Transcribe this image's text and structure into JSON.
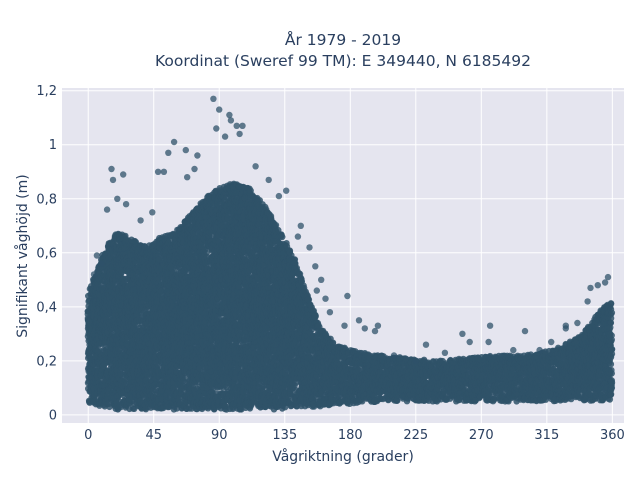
{
  "chart_data": {
    "type": "scatter",
    "title": "År 1979 - 2019",
    "subtitle": "Koordinat (Sweref 99 TM): E 349440, N 6185492",
    "xlabel": "Vågriktning (grader)",
    "ylabel": "Signifikant våghöjd (m)",
    "xlim": [
      -18,
      368
    ],
    "ylim": [
      -0.03,
      1.21
    ],
    "xticks": [
      0,
      45,
      90,
      135,
      180,
      225,
      270,
      315,
      360
    ],
    "xtick_labels": [
      "0",
      "45",
      "90",
      "135",
      "180",
      "225",
      "270",
      "315",
      "360"
    ],
    "yticks": [
      0,
      0.2,
      0.4,
      0.6,
      0.8,
      1,
      1.2
    ],
    "ytick_labels": [
      "0",
      "0,2",
      "0,4",
      "0,6",
      "0,8",
      "1",
      "1,2"
    ],
    "grid": true,
    "background": "#e5e5ef",
    "marker_color": "#2f5269",
    "envelope": {
      "direction": [
        0,
        10,
        20,
        30,
        40,
        50,
        60,
        70,
        80,
        90,
        100,
        110,
        120,
        130,
        140,
        150,
        160,
        170,
        180,
        200,
        220,
        240,
        260,
        280,
        300,
        320,
        340,
        350,
        360
      ],
      "lower": [
        0.04,
        0.03,
        0.02,
        0.02,
        0.02,
        0.02,
        0.02,
        0.02,
        0.02,
        0.02,
        0.02,
        0.02,
        0.02,
        0.02,
        0.03,
        0.03,
        0.03,
        0.04,
        0.04,
        0.05,
        0.05,
        0.05,
        0.05,
        0.05,
        0.05,
        0.05,
        0.05,
        0.05,
        0.05
      ],
      "upper": [
        0.45,
        0.6,
        0.68,
        0.65,
        0.62,
        0.66,
        0.68,
        0.74,
        0.8,
        0.84,
        0.86,
        0.84,
        0.78,
        0.7,
        0.6,
        0.45,
        0.32,
        0.26,
        0.24,
        0.22,
        0.21,
        0.2,
        0.21,
        0.22,
        0.22,
        0.24,
        0.3,
        0.38,
        0.42
      ]
    },
    "outliers": [
      {
        "x": 86,
        "y": 1.17
      },
      {
        "x": 90,
        "y": 1.13
      },
      {
        "x": 97,
        "y": 1.11
      },
      {
        "x": 98,
        "y": 1.09
      },
      {
        "x": 102,
        "y": 1.07
      },
      {
        "x": 106,
        "y": 1.07
      },
      {
        "x": 94,
        "y": 1.03
      },
      {
        "x": 88,
        "y": 1.06
      },
      {
        "x": 104,
        "y": 1.04
      },
      {
        "x": 59,
        "y": 1.01
      },
      {
        "x": 55,
        "y": 0.97
      },
      {
        "x": 67,
        "y": 0.98
      },
      {
        "x": 75,
        "y": 0.96
      },
      {
        "x": 48,
        "y": 0.9
      },
      {
        "x": 52,
        "y": 0.9
      },
      {
        "x": 16,
        "y": 0.91
      },
      {
        "x": 24,
        "y": 0.89
      },
      {
        "x": 17,
        "y": 0.87
      },
      {
        "x": 73,
        "y": 0.91
      },
      {
        "x": 68,
        "y": 0.88
      },
      {
        "x": 115,
        "y": 0.92
      },
      {
        "x": 124,
        "y": 0.87
      },
      {
        "x": 136,
        "y": 0.83
      },
      {
        "x": 131,
        "y": 0.81
      },
      {
        "x": 26,
        "y": 0.78
      },
      {
        "x": 20,
        "y": 0.8
      },
      {
        "x": 13,
        "y": 0.76
      },
      {
        "x": 44,
        "y": 0.75
      },
      {
        "x": 36,
        "y": 0.72
      },
      {
        "x": 146,
        "y": 0.7
      },
      {
        "x": 144,
        "y": 0.66
      },
      {
        "x": 152,
        "y": 0.62
      },
      {
        "x": 156,
        "y": 0.55
      },
      {
        "x": 160,
        "y": 0.5
      },
      {
        "x": 157,
        "y": 0.46
      },
      {
        "x": 163,
        "y": 0.43
      },
      {
        "x": 178,
        "y": 0.44
      },
      {
        "x": 166,
        "y": 0.38
      },
      {
        "x": 186,
        "y": 0.35
      },
      {
        "x": 190,
        "y": 0.32
      },
      {
        "x": 199,
        "y": 0.33
      },
      {
        "x": 197,
        "y": 0.31
      },
      {
        "x": 176,
        "y": 0.33
      },
      {
        "x": 232,
        "y": 0.26
      },
      {
        "x": 257,
        "y": 0.3
      },
      {
        "x": 262,
        "y": 0.27
      },
      {
        "x": 275,
        "y": 0.27
      },
      {
        "x": 276,
        "y": 0.33
      },
      {
        "x": 300,
        "y": 0.31
      },
      {
        "x": 328,
        "y": 0.32
      },
      {
        "x": 328,
        "y": 0.33
      },
      {
        "x": 336,
        "y": 0.34
      },
      {
        "x": 343,
        "y": 0.42
      },
      {
        "x": 345,
        "y": 0.47
      },
      {
        "x": 350,
        "y": 0.48
      },
      {
        "x": 357,
        "y": 0.51
      },
      {
        "x": 355,
        "y": 0.49
      },
      {
        "x": 6,
        "y": 0.59
      },
      {
        "x": 9,
        "y": 0.56
      },
      {
        "x": 4,
        "y": 0.52
      },
      {
        "x": 210,
        "y": 0.22
      },
      {
        "x": 225,
        "y": 0.2
      },
      {
        "x": 245,
        "y": 0.23
      },
      {
        "x": 292,
        "y": 0.24
      },
      {
        "x": 310,
        "y": 0.24
      },
      {
        "x": 318,
        "y": 0.27
      }
    ]
  }
}
